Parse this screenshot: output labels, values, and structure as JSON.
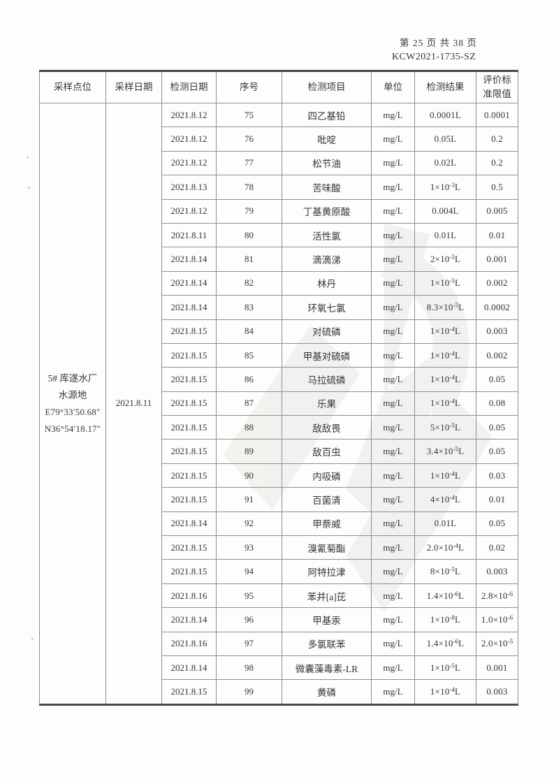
{
  "page": {
    "page_indicator": "第 25 页 共 38 页",
    "report_no": "KCW2021-1735-SZ"
  },
  "table": {
    "headers": [
      "采样点位",
      "采样日期",
      "检测日期",
      "序号",
      "检测项目",
      "单位",
      "检测结果",
      "评价标准限值"
    ],
    "merged": {
      "sampling_point_lines": [
        "5#  库遂水厂",
        "水源地",
        "E79°33′50.68″",
        "N36°54′18.17″"
      ],
      "sampling_date": "2021.8.11"
    },
    "rows": [
      {
        "date": "2021.8.12",
        "no": "75",
        "item": "四乙基铅",
        "unit": "mg/L",
        "result": "0.0001L",
        "limit": "0.0001"
      },
      {
        "date": "2021.8.12",
        "no": "76",
        "item": "吡啶",
        "unit": "mg/L",
        "result": "0.05L",
        "limit": "0.2"
      },
      {
        "date": "2021.8.12",
        "no": "77",
        "item": "松节油",
        "unit": "mg/L",
        "result": "0.02L",
        "limit": "0.2"
      },
      {
        "date": "2021.8.13",
        "no": "78",
        "item": "苦味酸",
        "unit": "mg/L",
        "result": "1×10^-3L",
        "limit": "0.5"
      },
      {
        "date": "2021.8.12",
        "no": "79",
        "item": "丁基黄原酸",
        "unit": "mg/L",
        "result": "0.004L",
        "limit": "0.005"
      },
      {
        "date": "2021.8.11",
        "no": "80",
        "item": "活性氯",
        "unit": "mg/L",
        "result": "0.01L",
        "limit": "0.01"
      },
      {
        "date": "2021.8.14",
        "no": "81",
        "item": "滴滴涕",
        "unit": "mg/L",
        "result": "2×10^-5L",
        "limit": "0.001"
      },
      {
        "date": "2021.8.14",
        "no": "82",
        "item": "林丹",
        "unit": "mg/L",
        "result": "1×10^-5L",
        "limit": "0.002"
      },
      {
        "date": "2021.8.14",
        "no": "83",
        "item": "环氧七氯",
        "unit": "mg/L",
        "result": "8.3×10^-5L",
        "limit": "0.0002"
      },
      {
        "date": "2021.8.15",
        "no": "84",
        "item": "对硫磷",
        "unit": "mg/L",
        "result": "1×10^-4L",
        "limit": "0.003"
      },
      {
        "date": "2021.8.15",
        "no": "85",
        "item": "甲基对硫磷",
        "unit": "mg/L",
        "result": "1×10^-4L",
        "limit": "0.002"
      },
      {
        "date": "2021.8.15",
        "no": "86",
        "item": "马拉硫磷",
        "unit": "mg/L",
        "result": "1×10^-4L",
        "limit": "0.05"
      },
      {
        "date": "2021.8.15",
        "no": "87",
        "item": "乐果",
        "unit": "mg/L",
        "result": "1×10^-4L",
        "limit": "0.08"
      },
      {
        "date": "2021.8.15",
        "no": "88",
        "item": "敌敌畏",
        "unit": "mg/L",
        "result": "5×10^-5L",
        "limit": "0.05"
      },
      {
        "date": "2021.8.15",
        "no": "89",
        "item": "敌百虫",
        "unit": "mg/L",
        "result": "3.4×10^-5L",
        "limit": "0.05"
      },
      {
        "date": "2021.8.15",
        "no": "90",
        "item": "内吸磷",
        "unit": "mg/L",
        "result": "1×10^-4L",
        "limit": "0.03"
      },
      {
        "date": "2021.8.15",
        "no": "91",
        "item": "百菌清",
        "unit": "mg/L",
        "result": "4×10^-4L",
        "limit": "0.01"
      },
      {
        "date": "2021.8.14",
        "no": "92",
        "item": "甲萘威",
        "unit": "mg/L",
        "result": "0.01L",
        "limit": "0.05"
      },
      {
        "date": "2021.8.15",
        "no": "93",
        "item": "溴氰菊酯",
        "unit": "mg/L",
        "result": "2.0×10^-4L",
        "limit": "0.02"
      },
      {
        "date": "2021.8.15",
        "no": "94",
        "item": "阿特拉津",
        "unit": "mg/L",
        "result": "8×10^-5L",
        "limit": "0.003"
      },
      {
        "date": "2021.8.16",
        "no": "95",
        "item": "苯并[a]芘",
        "unit": "mg/L",
        "result": "1.4×10^-6L",
        "limit": "2.8×10^-6"
      },
      {
        "date": "2021.8.14",
        "no": "96",
        "item": "甲基汞",
        "unit": "mg/L",
        "result": "1×10^-8L",
        "limit": "1.0×10^-6"
      },
      {
        "date": "2021.8.16",
        "no": "97",
        "item": "多氯联苯",
        "unit": "mg/L",
        "result": "1.4×10^-6L",
        "limit": "2.0×10^-5"
      },
      {
        "date": "2021.8.14",
        "no": "98",
        "item": "微囊藻毒素-LR",
        "unit": "mg/L",
        "result": "1×10^-5L",
        "limit": "0.001"
      },
      {
        "date": "2021.8.15",
        "no": "99",
        "item": "黄磷",
        "unit": "mg/L",
        "result": "1×10^-4L",
        "limit": "0.003"
      }
    ]
  }
}
